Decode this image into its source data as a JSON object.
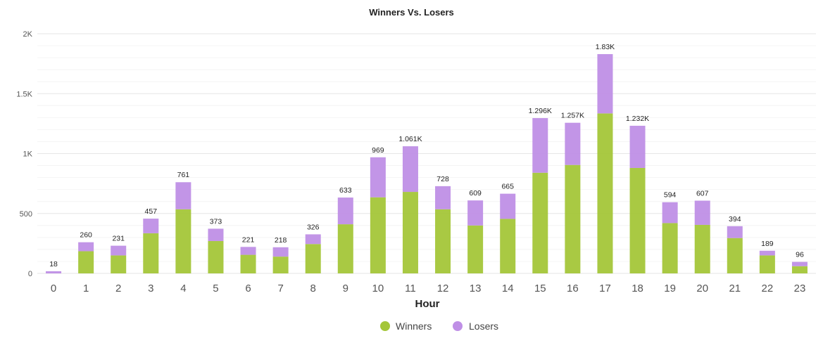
{
  "chart_data": {
    "type": "bar",
    "stacked": true,
    "title": "Winners Vs. Losers",
    "xlabel": "Hour",
    "ylabel": "",
    "ylim": [
      0,
      2000
    ],
    "yticks": [
      0,
      500,
      1000,
      1500,
      2000
    ],
    "ytick_labels": [
      "0",
      "500",
      "1K",
      "1.5K",
      "2K"
    ],
    "grid": true,
    "legend_position": "bottom-center",
    "categories": [
      "0",
      "1",
      "2",
      "3",
      "4",
      "5",
      "6",
      "7",
      "8",
      "9",
      "10",
      "11",
      "12",
      "13",
      "14",
      "15",
      "16",
      "17",
      "18",
      "19",
      "20",
      "21",
      "22",
      "23"
    ],
    "series": [
      {
        "name": "Winners",
        "color": "#a4c639",
        "values": [
          0,
          185,
          150,
          335,
          535,
          270,
          155,
          140,
          245,
          410,
          635,
          680,
          535,
          400,
          455,
          840,
          905,
          1335,
          880,
          420,
          405,
          295,
          150,
          60
        ]
      },
      {
        "name": "Losers",
        "color": "#bf8fe6",
        "values": [
          18,
          75,
          81,
          122,
          226,
          103,
          66,
          78,
          81,
          223,
          334,
          381,
          193,
          209,
          210,
          456,
          352,
          495,
          352,
          174,
          202,
          99,
          39,
          36
        ]
      }
    ],
    "totals": [
      18,
      260,
      231,
      457,
      761,
      373,
      221,
      218,
      326,
      633,
      969,
      1061,
      728,
      609,
      665,
      1296,
      1257,
      1830,
      1232,
      594,
      607,
      394,
      189,
      96
    ],
    "total_labels": [
      "18",
      "260",
      "231",
      "457",
      "761",
      "373",
      "221",
      "218",
      "326",
      "633",
      "969",
      "1.061K",
      "728",
      "609",
      "665",
      "1.296K",
      "1.257K",
      "1.83K",
      "1.232K",
      "594",
      "607",
      "394",
      "189",
      "96"
    ]
  }
}
